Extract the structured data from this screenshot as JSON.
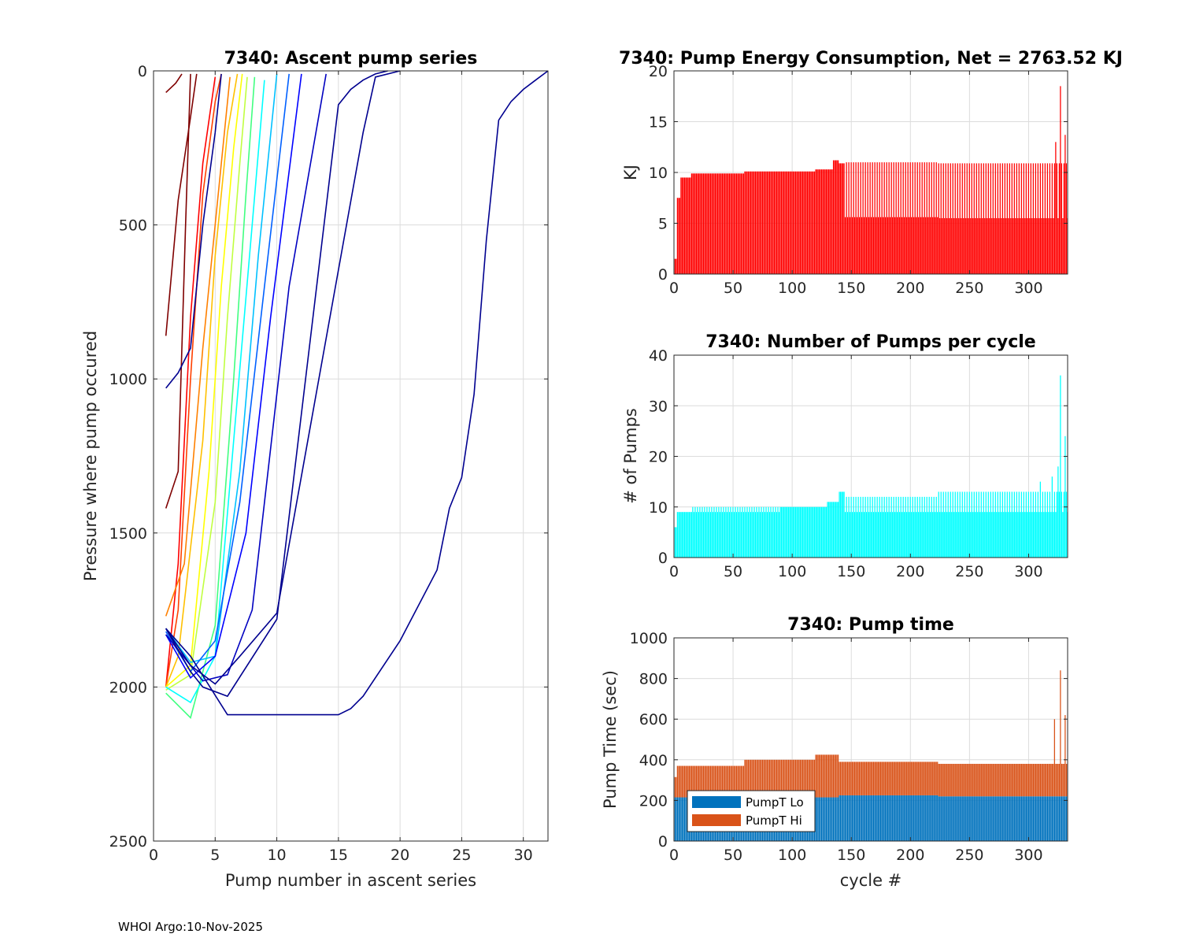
{
  "footer": "WHOI Argo:10-Nov-2025",
  "chart_data": [
    {
      "id": "ascent",
      "type": "line",
      "title": "7340: Ascent pump series",
      "xlabel": "Pump number in ascent series",
      "ylabel": "Pressure where pump occured",
      "xlim": [
        0,
        32
      ],
      "ylim": [
        0,
        2500
      ],
      "y_reversed": true,
      "xticks": [
        0,
        5,
        10,
        15,
        20,
        25,
        30
      ],
      "yticks": [
        0,
        500,
        1000,
        1500,
        2000,
        2500
      ],
      "grid": true,
      "colormap": "jet (color by cycle number)",
      "n_series": 333,
      "representative_series": [
        {
          "color": "#7f0000",
          "x": [
            1,
            2,
            3,
            3.5
          ],
          "y": [
            860,
            420,
            150,
            10
          ]
        },
        {
          "color": "#7f0000",
          "x": [
            1,
            2,
            2.6,
            3
          ],
          "y": [
            1420,
            1300,
            500,
            10
          ]
        },
        {
          "color": "#7f0000",
          "x": [
            1,
            1.8,
            2.3
          ],
          "y": [
            70,
            40,
            10
          ]
        },
        {
          "color": "#ff0000",
          "x": [
            1,
            2,
            3,
            4,
            5
          ],
          "y": [
            2000,
            1600,
            800,
            300,
            20
          ]
        },
        {
          "color": "#ff4000",
          "x": [
            1,
            2,
            3,
            4,
            5,
            5.5
          ],
          "y": [
            2000,
            1750,
            1000,
            400,
            100,
            10
          ]
        },
        {
          "color": "#ff8000",
          "x": [
            1,
            2.5,
            4,
            5.5,
            6.2
          ],
          "y": [
            1770,
            1600,
            900,
            300,
            20
          ]
        },
        {
          "color": "#ffc000",
          "x": [
            1,
            2,
            4,
            5,
            6,
            6.8
          ],
          "y": [
            2000,
            1900,
            1200,
            600,
            200,
            10
          ]
        },
        {
          "color": "#ffff00",
          "x": [
            1,
            3,
            4.5,
            5.5,
            6.5,
            7.2
          ],
          "y": [
            2000,
            1930,
            1300,
            700,
            250,
            10
          ]
        },
        {
          "color": "#c0ff40",
          "x": [
            1,
            3,
            5,
            6,
            7,
            7.6
          ],
          "y": [
            2010,
            1960,
            1400,
            800,
            300,
            20
          ]
        },
        {
          "color": "#40ff80",
          "x": [
            1,
            3,
            5,
            6.5,
            7.5,
            8.2
          ],
          "y": [
            2020,
            2100,
            1800,
            1000,
            400,
            20
          ]
        },
        {
          "color": "#00ffff",
          "x": [
            1,
            3,
            5,
            6.5,
            8,
            9
          ],
          "y": [
            2000,
            2050,
            1900,
            1200,
            500,
            30
          ]
        },
        {
          "color": "#00c0ff",
          "x": [
            1,
            3,
            5,
            7,
            8.5,
            10
          ],
          "y": [
            1810,
            1920,
            1900,
            1300,
            600,
            10
          ]
        },
        {
          "color": "#0060ff",
          "x": [
            1,
            3,
            5,
            7,
            9,
            11
          ],
          "y": [
            1820,
            1950,
            1850,
            1400,
            700,
            10
          ]
        },
        {
          "color": "#0000ff",
          "x": [
            1,
            3,
            5,
            7.5,
            9.5,
            12
          ],
          "y": [
            1830,
            1970,
            1900,
            1500,
            800,
            10
          ]
        },
        {
          "color": "#0000c0",
          "x": [
            1,
            4,
            6,
            8,
            11,
            14
          ],
          "y": [
            1830,
            1980,
            1960,
            1750,
            700,
            10
          ]
        },
        {
          "color": "#000090",
          "x": [
            1,
            2,
            3,
            4,
            5,
            5.5
          ],
          "y": [
            1030,
            980,
            900,
            500,
            200,
            10
          ]
        },
        {
          "color": "#00008f",
          "x": [
            1,
            3,
            6,
            15,
            16,
            17,
            20,
            23,
            24,
            25,
            26,
            27,
            28,
            29,
            30,
            31,
            32
          ],
          "y": [
            1810,
            1900,
            2090,
            2090,
            2070,
            2030,
            1850,
            1620,
            1420,
            1320,
            1050,
            550,
            160,
            100,
            60,
            30,
            0
          ]
        },
        {
          "color": "#00008f",
          "x": [
            1,
            3,
            4,
            6,
            10,
            15,
            16,
            17,
            18,
            19
          ],
          "y": [
            1810,
            1950,
            2000,
            2030,
            1780,
            110,
            60,
            30,
            10,
            0
          ]
        },
        {
          "color": "#00008f",
          "x": [
            1,
            3,
            5,
            7,
            10,
            17,
            18,
            20
          ],
          "y": [
            1810,
            1930,
            1990,
            1900,
            1760,
            200,
            20,
            0
          ]
        }
      ]
    },
    {
      "id": "energy",
      "type": "bar",
      "title": "7340: Pump Energy Consumption,  Net = 2763.52 KJ",
      "xlabel": "",
      "ylabel": "KJ",
      "xlim": [
        0,
        333
      ],
      "ylim": [
        0,
        20
      ],
      "xticks": [
        0,
        50,
        100,
        150,
        200,
        250,
        300
      ],
      "yticks": [
        0,
        5,
        10,
        15,
        20
      ],
      "grid": true,
      "color": "#ff0000",
      "x": "cycles 1..333",
      "values_by_range": [
        {
          "cycles": [
            1,
            3
          ],
          "value": 1.5
        },
        {
          "cycles": [
            3,
            6
          ],
          "value": 7.5
        },
        {
          "cycles": [
            6,
            15
          ],
          "value": 9.5
        },
        {
          "cycles": [
            15,
            60
          ],
          "value": 9.9
        },
        {
          "cycles": [
            60,
            120
          ],
          "value": 10.1
        },
        {
          "cycles": [
            120,
            135
          ],
          "value": 10.3
        },
        {
          "cycles": [
            135,
            140
          ],
          "value": 11.2
        },
        {
          "cycles": [
            140,
            145
          ],
          "value": 10.9
        },
        {
          "cycles": [
            145,
            224
          ],
          "value": 5.6,
          "alternate_peak": 11.0
        },
        {
          "cycles": [
            224,
            333
          ],
          "value": 5.5,
          "alternate_peak": 10.9
        }
      ],
      "notable_values": [
        {
          "cycle": 323,
          "value": 13.0
        },
        {
          "cycle": 327,
          "value": 18.5
        },
        {
          "cycle": 331,
          "value": 13.7
        }
      ]
    },
    {
      "id": "npumps",
      "type": "bar",
      "title": "7340: Number of Pumps per cycle",
      "xlabel": "",
      "ylabel": "# of Pumps",
      "xlim": [
        0,
        333
      ],
      "ylim": [
        0,
        40
      ],
      "xticks": [
        0,
        50,
        100,
        150,
        200,
        250,
        300
      ],
      "yticks": [
        0,
        10,
        20,
        30,
        40
      ],
      "grid": true,
      "color": "#00ffff",
      "x": "cycles 1..333",
      "values_by_range": [
        {
          "cycles": [
            1,
            3
          ],
          "value": 6
        },
        {
          "cycles": [
            3,
            15
          ],
          "value": 9
        },
        {
          "cycles": [
            15,
            90
          ],
          "value": 9,
          "alternate_peak": 10
        },
        {
          "cycles": [
            90,
            130
          ],
          "value": 10
        },
        {
          "cycles": [
            130,
            140
          ],
          "value": 11
        },
        {
          "cycles": [
            140,
            145
          ],
          "value": 13
        },
        {
          "cycles": [
            145,
            224
          ],
          "value": 9,
          "alternate_peak": 12
        },
        {
          "cycles": [
            224,
            333
          ],
          "value": 9,
          "alternate_peak": 13
        }
      ],
      "notable_values": [
        {
          "cycle": 310,
          "value": 15
        },
        {
          "cycle": 320,
          "value": 16
        },
        {
          "cycle": 325,
          "value": 18
        },
        {
          "cycle": 327,
          "value": 36
        },
        {
          "cycle": 331,
          "value": 24
        }
      ]
    },
    {
      "id": "pumptime",
      "type": "bar",
      "stacked": true,
      "title": "7340: Pump time",
      "xlabel": "cycle #",
      "ylabel": "Pump Time (sec)",
      "xlim": [
        0,
        333
      ],
      "ylim": [
        0,
        1000
      ],
      "xticks": [
        0,
        50,
        100,
        150,
        200,
        250,
        300
      ],
      "yticks": [
        0,
        200,
        400,
        600,
        800,
        1000
      ],
      "grid": true,
      "legend": {
        "location": "bottom-left",
        "entries": [
          "PumpT Lo",
          "PumpT Hi"
        ]
      },
      "series": [
        {
          "name": "PumpT Lo",
          "color": "#0072bd",
          "values_by_range": [
            {
              "cycles": [
                1,
                140
              ],
              "value": 215
            },
            {
              "cycles": [
                140,
                224
              ],
              "value": 225
            },
            {
              "cycles": [
                224,
                333
              ],
              "value": 220
            }
          ]
        },
        {
          "name": "PumpT Hi",
          "color": "#d95319",
          "values_by_range": [
            {
              "cycles": [
                1,
                3
              ],
              "value": 100
            },
            {
              "cycles": [
                3,
                60
              ],
              "value": 155
            },
            {
              "cycles": [
                60,
                120
              ],
              "value": 185
            },
            {
              "cycles": [
                120,
                140
              ],
              "value": 210
            },
            {
              "cycles": [
                140,
                224
              ],
              "value": 165
            },
            {
              "cycles": [
                224,
                333
              ],
              "value": 160
            }
          ]
        }
      ],
      "notable_totals": [
        {
          "cycle": 322,
          "value": 600
        },
        {
          "cycle": 327,
          "value": 840
        },
        {
          "cycle": 331,
          "value": 620
        }
      ]
    }
  ]
}
